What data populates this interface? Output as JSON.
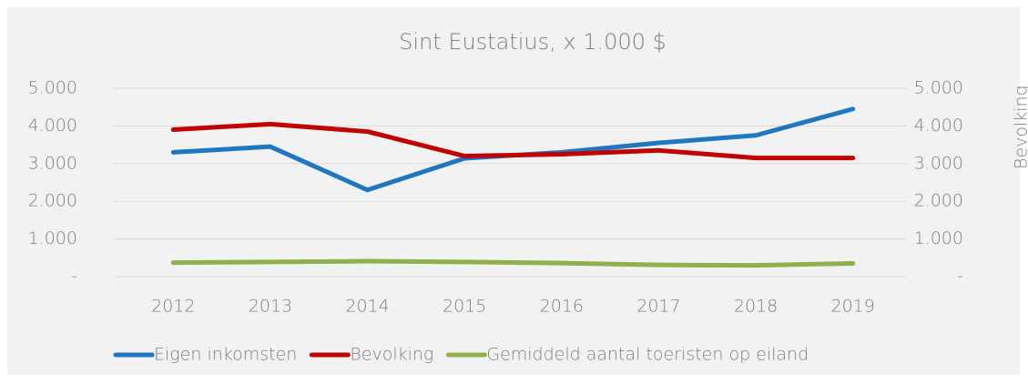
{
  "chart_data": {
    "type": "line",
    "title": "Sint Eustatius, x 1.000 $",
    "y2label": "Bevolking",
    "categories": [
      "2012",
      "2013",
      "2014",
      "2015",
      "2016",
      "2017",
      "2018",
      "2019"
    ],
    "series": [
      {
        "name": "Eigen inkomsten",
        "color": "#1f77c0",
        "values": [
          3300,
          3450,
          2300,
          3140,
          3300,
          3550,
          3750,
          4450
        ]
      },
      {
        "name": "Bevolking",
        "color": "#c00000",
        "axis": "y2",
        "values": [
          3900,
          4050,
          3850,
          3200,
          3250,
          3350,
          3150,
          3150
        ]
      },
      {
        "name": "Gemiddeld aantal toeristen op eiland",
        "color": "#8fb04a",
        "values": [
          370,
          390,
          410,
          390,
          360,
          310,
          300,
          350
        ]
      }
    ],
    "ylim": [
      0,
      5000
    ],
    "yticks": [
      {
        "value": 0,
        "label": "-"
      },
      {
        "value": 1000,
        "label": "1.000"
      },
      {
        "value": 2000,
        "label": "2.000"
      },
      {
        "value": 3000,
        "label": "3.000"
      },
      {
        "value": 4000,
        "label": "4.000"
      },
      {
        "value": 5000,
        "label": "5.000"
      }
    ],
    "y2lim": [
      0,
      5000
    ],
    "y2ticks": [
      {
        "value": 0,
        "label": "-"
      },
      {
        "value": 1000,
        "label": "1.000"
      },
      {
        "value": 2000,
        "label": "2.000"
      },
      {
        "value": 3000,
        "label": "3.000"
      },
      {
        "value": 4000,
        "label": "4.000"
      },
      {
        "value": 5000,
        "label": "5.000"
      }
    ],
    "grid": true,
    "legend": "bottom"
  }
}
